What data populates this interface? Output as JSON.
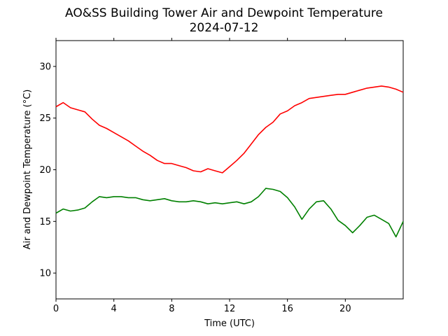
{
  "chart_data": {
    "type": "line",
    "title": "AO&SS Building Tower Air and Dewpoint Temperature",
    "subtitle": "2024-07-12",
    "xlabel": "Time (UTC)",
    "ylabel": "Air and Dewpoint Temperature (°C)",
    "xlim": [
      0,
      24
    ],
    "ylim": [
      7.5,
      32.5
    ],
    "xticks": [
      0,
      4,
      8,
      12,
      16,
      20
    ],
    "yticks": [
      10,
      15,
      20,
      25,
      30
    ],
    "grid": false,
    "legend": "none",
    "series": [
      {
        "color": "#ff0000",
        "x": [
          0,
          0.5,
          1,
          1.5,
          2,
          2.5,
          3,
          3.5,
          4,
          4.5,
          5,
          5.5,
          6,
          6.5,
          7,
          7.5,
          8,
          8.5,
          9,
          9.5,
          10,
          10.5,
          11,
          11.5,
          12,
          12.5,
          13,
          13.5,
          14,
          14.5,
          15,
          15.5,
          16,
          16.5,
          17,
          17.5,
          18,
          18.5,
          19,
          19.5,
          20,
          20.5,
          21,
          21.5,
          22,
          22.5,
          23,
          23.5,
          24
        ],
        "y": [
          26.1,
          26.5,
          26.0,
          25.8,
          25.6,
          24.9,
          24.3,
          24.0,
          23.6,
          23.2,
          22.8,
          22.3,
          21.8,
          21.4,
          20.9,
          20.6,
          20.6,
          20.4,
          20.2,
          19.9,
          19.8,
          20.1,
          19.9,
          19.7,
          20.3,
          20.9,
          21.6,
          22.5,
          23.4,
          24.1,
          24.6,
          25.4,
          25.7,
          26.2,
          26.5,
          26.9,
          27.0,
          27.1,
          27.2,
          27.3,
          27.3,
          27.5,
          27.7,
          27.9,
          28.0,
          28.1,
          28.0,
          27.8,
          27.5
        ]
      },
      {
        "color": "#008000",
        "x": [
          0,
          0.5,
          1,
          1.5,
          2,
          2.5,
          3,
          3.5,
          4,
          4.5,
          5,
          5.5,
          6,
          6.5,
          7,
          7.5,
          8,
          8.5,
          9,
          9.5,
          10,
          10.5,
          11,
          11.5,
          12,
          12.5,
          13,
          13.5,
          14,
          14.5,
          15,
          15.5,
          16,
          16.5,
          17,
          17.5,
          18,
          18.5,
          19,
          19.5,
          20,
          20.5,
          21,
          21.5,
          22,
          22.5,
          23,
          23.5,
          24
        ],
        "y": [
          15.8,
          16.2,
          16.0,
          16.1,
          16.3,
          16.9,
          17.4,
          17.3,
          17.4,
          17.4,
          17.3,
          17.3,
          17.1,
          17.0,
          17.1,
          17.2,
          17.0,
          16.9,
          16.9,
          17.0,
          16.9,
          16.7,
          16.8,
          16.7,
          16.8,
          16.9,
          16.7,
          16.9,
          17.4,
          18.2,
          18.1,
          17.9,
          17.3,
          16.4,
          15.2,
          16.2,
          16.9,
          17.0,
          16.2,
          15.1,
          14.6,
          13.9,
          14.6,
          15.4,
          15.6,
          15.2,
          14.8,
          13.5,
          15.0
        ]
      }
    ]
  }
}
